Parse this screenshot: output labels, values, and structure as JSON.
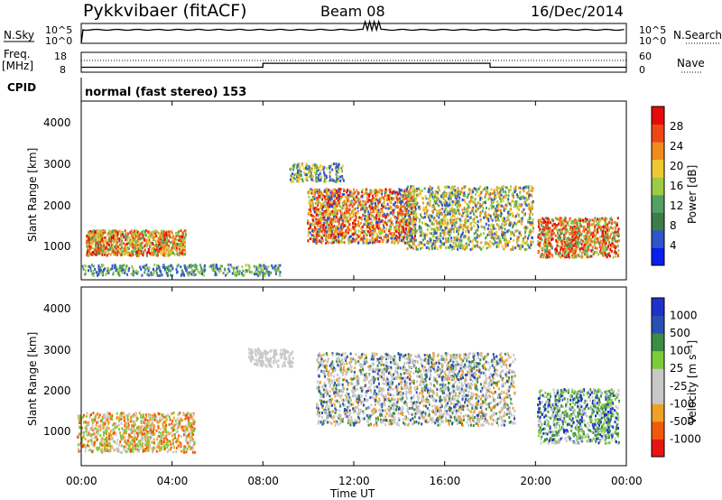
{
  "header": {
    "station": "Pykkvibaer (fitACF)",
    "beam": "Beam 08",
    "date": "16/Dec/2014"
  },
  "noise_panel": {
    "left_label": "N.Sky",
    "right_label": "N.Search",
    "left_ticks": [
      "10^5",
      "10^0"
    ],
    "right_ticks": [
      "10^5",
      "10^0"
    ]
  },
  "freq_panel": {
    "left_label_1": "Freq.",
    "left_label_2": "[MHz]",
    "right_label": "Nave",
    "left_ticks": [
      "18",
      "8"
    ],
    "right_ticks": [
      "60",
      "0"
    ]
  },
  "cpid_panel": {
    "label": "CPID",
    "text": "normal (fast stereo) 153"
  },
  "colors": {
    "power_scale": [
      "#0a1ef0",
      "#2f55c8",
      "#3e7d4b",
      "#52a063",
      "#9ccc44",
      "#f0c832",
      "#f08c1e",
      "#f04614",
      "#e60a0a"
    ],
    "velocity_scale": [
      "#e61414",
      "#f05a0a",
      "#f0a028",
      "#c8c8c8",
      "#c8c8c8",
      "#7ccc3c",
      "#3c8c46",
      "#2850b4",
      "#1e32c8"
    ]
  },
  "chart_data": [
    {
      "type": "line",
      "title": "N.Sky / N.Search",
      "x_range_hours": [
        0,
        24
      ],
      "y_scale": "log",
      "y_ticks": [
        "10^0",
        "10^5"
      ]
    },
    {
      "type": "line",
      "title": "Freq. [MHz] / Nave",
      "x_range_hours": [
        0,
        24
      ],
      "freq_ylim_mhz": [
        8,
        18
      ],
      "nave_ylim": [
        0,
        60
      ],
      "freq_segments": [
        {
          "start": "00:00",
          "end": "08:00",
          "value_mhz": 10.5
        },
        {
          "start": "08:00",
          "end": "18:00",
          "value_mhz": 12.5
        },
        {
          "start": "18:00",
          "end": "24:00",
          "value_mhz": 10.5
        }
      ]
    },
    {
      "type": "heatmap",
      "ylabel": "Slant Range [km]",
      "y_ticks": [
        "4000",
        "3000",
        "2000",
        "1000"
      ],
      "colorbar_label": "Power [dB]",
      "colorbar_ticks": [
        "28",
        "24",
        "20",
        "16",
        "12",
        "8",
        "4"
      ]
    },
    {
      "type": "heatmap",
      "ylabel": "Slant Range [km]",
      "y_ticks": [
        "4000",
        "3000",
        "2000",
        "1000"
      ],
      "colorbar_label": "Velocity [m s⁻¹]",
      "colorbar_ticks": [
        "1000",
        "500",
        "100",
        "25",
        "-25",
        "-100",
        "-500",
        "-1000"
      ]
    }
  ],
  "x_axis": {
    "ticks": [
      "00:00",
      "04:00",
      "08:00",
      "12:00",
      "16:00",
      "20:00",
      "00:00"
    ],
    "label": "Time UT"
  }
}
